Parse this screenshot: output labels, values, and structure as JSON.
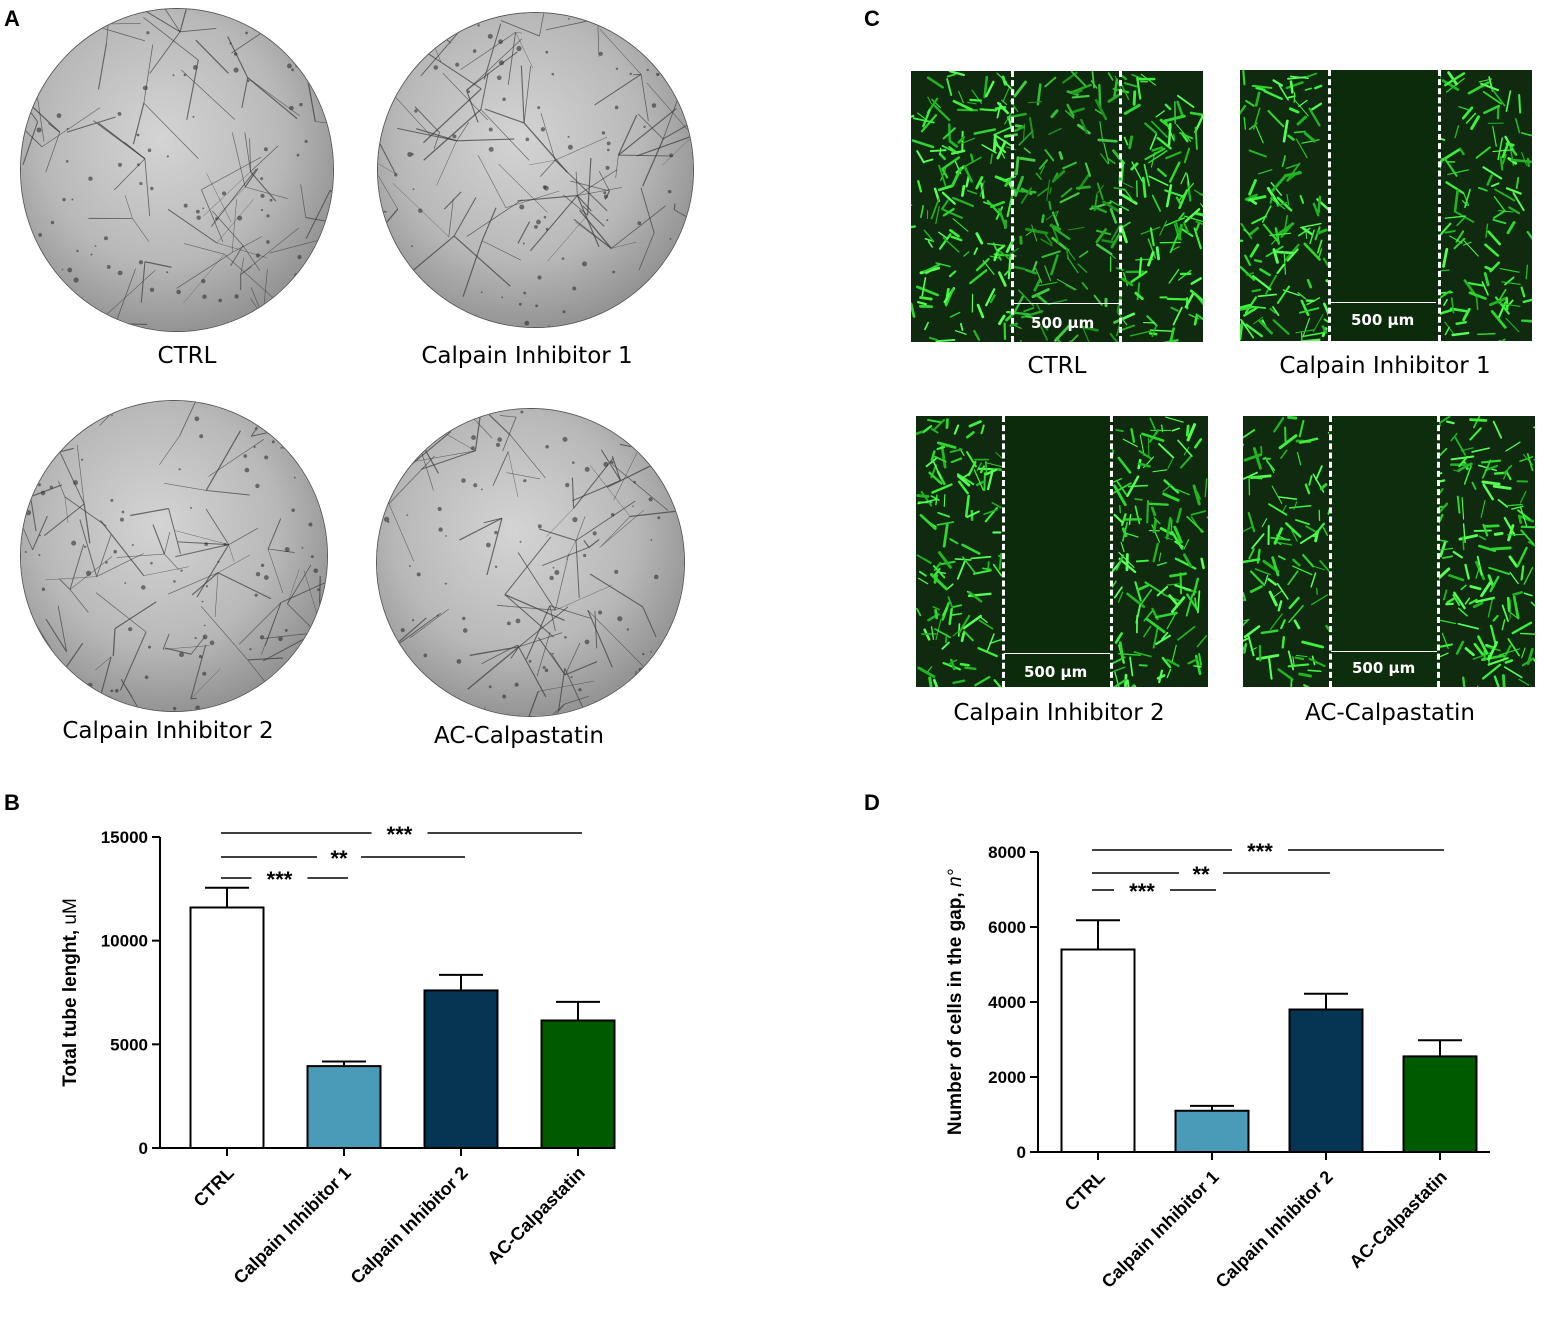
{
  "panels": {
    "A": {
      "label": "A",
      "images": [
        {
          "caption": "CTRL"
        },
        {
          "caption": "Calpain Inhibitor 1"
        },
        {
          "caption": "Calpain Inhibitor 2"
        },
        {
          "caption": "AC-Calpastatin"
        }
      ]
    },
    "B": {
      "label": "B"
    },
    "C": {
      "label": "C",
      "images": [
        {
          "caption": "CTRL",
          "scale_label": "500 μm"
        },
        {
          "caption": "Calpain Inhibitor 1",
          "scale_label": "500 μm"
        },
        {
          "caption": "Calpain Inhibitor 2",
          "scale_label": "500 μm"
        },
        {
          "caption": "AC-Calpastatin",
          "scale_label": "500 μm"
        }
      ]
    },
    "D": {
      "label": "D"
    }
  },
  "chart_data": [
    {
      "panel": "B",
      "type": "bar",
      "categories": [
        "CTRL",
        "Calpain Inhibitor 1",
        "Calpain Inhibitor 2",
        "AC-Calpastatin"
      ],
      "values": [
        11600,
        3950,
        7600,
        6150
      ],
      "errors": [
        950,
        220,
        750,
        900
      ],
      "colors": [
        "#ffffff",
        "#4a9bb8",
        "#053553",
        "#005a00"
      ],
      "ylabel_bold": "Total tube lenght,",
      "ylabel_unit": "uM",
      "ylim": [
        0,
        15000
      ],
      "yticks": [
        0,
        5000,
        10000,
        15000
      ],
      "ytick_labels": [
        "0",
        "5000",
        "10000",
        "15000"
      ],
      "significance": [
        {
          "from": 0,
          "to": 3,
          "label": "***"
        },
        {
          "from": 0,
          "to": 2,
          "label": "**"
        },
        {
          "from": 0,
          "to": 1,
          "label": "***"
        }
      ]
    },
    {
      "panel": "D",
      "type": "bar",
      "categories": [
        "CTRL",
        "Calpain Inhibitor 1",
        "Calpain Inhibitor 2",
        "AC-Calpastatin"
      ],
      "values": [
        5400,
        1100,
        3800,
        2550
      ],
      "errors": [
        780,
        130,
        420,
        430
      ],
      "colors": [
        "#ffffff",
        "#4a9bb8",
        "#053553",
        "#005a00"
      ],
      "ylabel_bold": "Number of cells in the gap,",
      "ylabel_unit": "n°",
      "ylim": [
        0,
        8000
      ],
      "yticks": [
        0,
        2000,
        4000,
        6000,
        8000
      ],
      "ytick_labels": [
        "0",
        "2000",
        "4000",
        "6000",
        "8000"
      ],
      "significance": [
        {
          "from": 0,
          "to": 3,
          "label": "***"
        },
        {
          "from": 0,
          "to": 2,
          "label": "**"
        },
        {
          "from": 0,
          "to": 1,
          "label": "***"
        }
      ]
    }
  ]
}
